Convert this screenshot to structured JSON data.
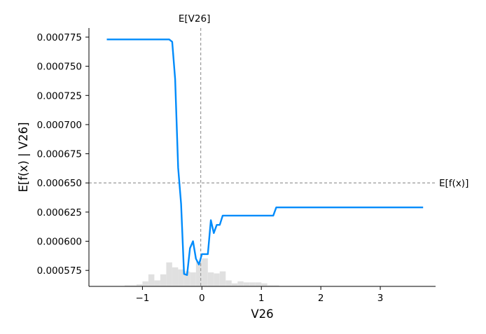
{
  "chart_data": {
    "type": "line",
    "title": "",
    "xlabel": "V26",
    "ylabel": "E[f(x) | V26]",
    "xlim": [
      -1.9,
      3.93
    ],
    "ylim": [
      0.0005613,
      0.0007828
    ],
    "x_ticks": [
      -1,
      0,
      1,
      2,
      3
    ],
    "x_tick_labels": [
      "−1",
      "0",
      "1",
      "2",
      "3"
    ],
    "y_ticks": [
      0.000575,
      0.0006,
      0.000625,
      0.00065,
      0.000675,
      0.0007,
      0.000725,
      0.00075,
      0.000775
    ],
    "y_tick_labels": [
      "0.000575",
      "0.000600",
      "0.000625",
      "0.000650",
      "0.000675",
      "0.000700",
      "0.000725",
      "0.000750",
      "0.000775"
    ],
    "grid": false,
    "reference_lines": {
      "expected_feature": {
        "label": "E[V26]",
        "x": -0.02
      },
      "expected_output": {
        "label": "E[f(x)]",
        "y": 0.00065
      }
    },
    "series": [
      {
        "color": "#008bfb",
        "x": [
          -1.6,
          -0.55,
          -0.5,
          -0.45,
          -0.4,
          -0.35,
          -0.3,
          -0.25,
          -0.2,
          -0.15,
          -0.1,
          -0.05,
          0.0,
          0.05,
          0.1,
          0.15,
          0.2,
          0.25,
          0.3,
          0.35,
          0.4,
          0.5,
          1.2,
          1.25,
          3.72
        ],
        "y": [
          0.000773,
          0.000773,
          0.000771,
          0.000739,
          0.000663,
          0.000632,
          0.000572,
          0.000571,
          0.000594,
          0.0006,
          0.000585,
          0.00058,
          0.000589,
          0.000589,
          0.000589,
          0.000618,
          0.000607,
          0.000614,
          0.000614,
          0.000622,
          0.000622,
          0.000622,
          0.000622,
          0.000629,
          0.000629
        ]
      }
    ],
    "histogram": {
      "color": "#e0e0e0",
      "bin_edges": [
        -1.3,
        -1.2,
        -1.1,
        -1.0,
        -0.9,
        -0.8,
        -0.7,
        -0.6,
        -0.5,
        -0.4,
        -0.3,
        -0.2,
        -0.1,
        0.0,
        0.1,
        0.2,
        0.3,
        0.4,
        0.5,
        0.6,
        0.7,
        0.8,
        0.9,
        1.0,
        1.1,
        1.2,
        1.3
      ],
      "counts": [
        1,
        1,
        2,
        5,
        12,
        6,
        12,
        24,
        19,
        17,
        15,
        14,
        25,
        28,
        14,
        13,
        15,
        6,
        3,
        5,
        4,
        4,
        4,
        3,
        1,
        1
      ]
    }
  }
}
